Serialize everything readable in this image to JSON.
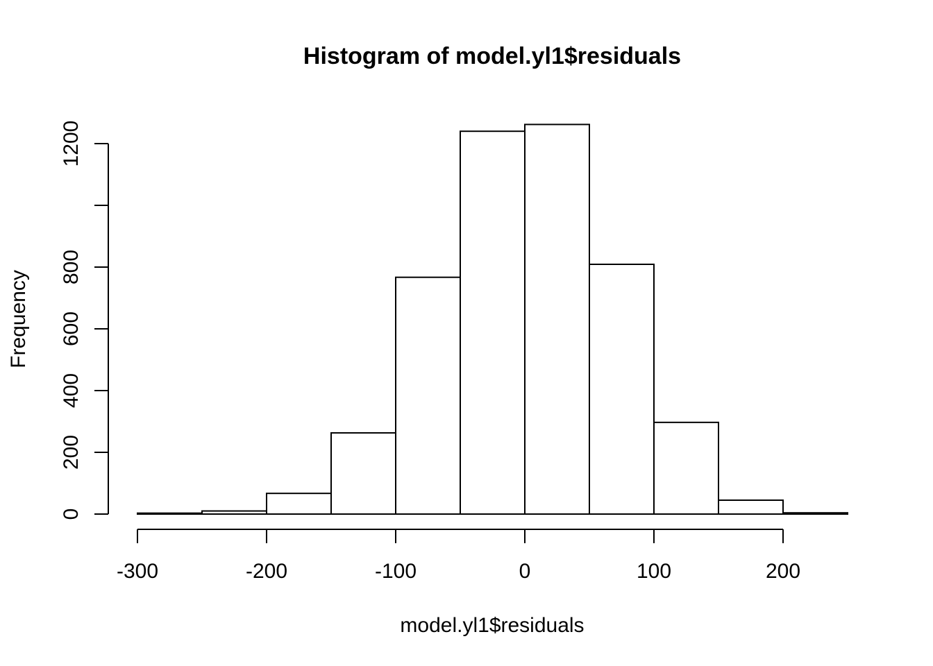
{
  "chart_data": {
    "type": "bar",
    "title": "Histogram of model.yl1$residuals",
    "xlabel": "model.yl1$residuals",
    "ylabel": "Frequency",
    "bins": [
      {
        "x0": -300,
        "x1": -250,
        "count": 3
      },
      {
        "x0": -250,
        "x1": -200,
        "count": 10
      },
      {
        "x0": -200,
        "x1": -150,
        "count": 67
      },
      {
        "x0": -150,
        "x1": -100,
        "count": 263
      },
      {
        "x0": -100,
        "x1": -50,
        "count": 767
      },
      {
        "x0": -50,
        "x1": 0,
        "count": 1240
      },
      {
        "x0": 0,
        "x1": 50,
        "count": 1262
      },
      {
        "x0": 50,
        "x1": 100,
        "count": 809
      },
      {
        "x0": 100,
        "x1": 150,
        "count": 297
      },
      {
        "x0": 150,
        "x1": 200,
        "count": 45
      },
      {
        "x0": 200,
        "x1": 250,
        "count": 4
      }
    ],
    "xticks": [
      -300,
      -200,
      -100,
      0,
      100,
      200
    ],
    "yticks": [
      0,
      200,
      400,
      600,
      800,
      1000,
      1200
    ],
    "ytick_labels": [
      "0",
      "200",
      "400",
      "600",
      "800",
      "",
      "1200"
    ],
    "xlim": [
      -300,
      250
    ],
    "ylim": [
      0,
      1200
    ],
    "bar_fill": "#ffffff",
    "bar_stroke": "#000000",
    "grid": false,
    "legend": "none"
  }
}
